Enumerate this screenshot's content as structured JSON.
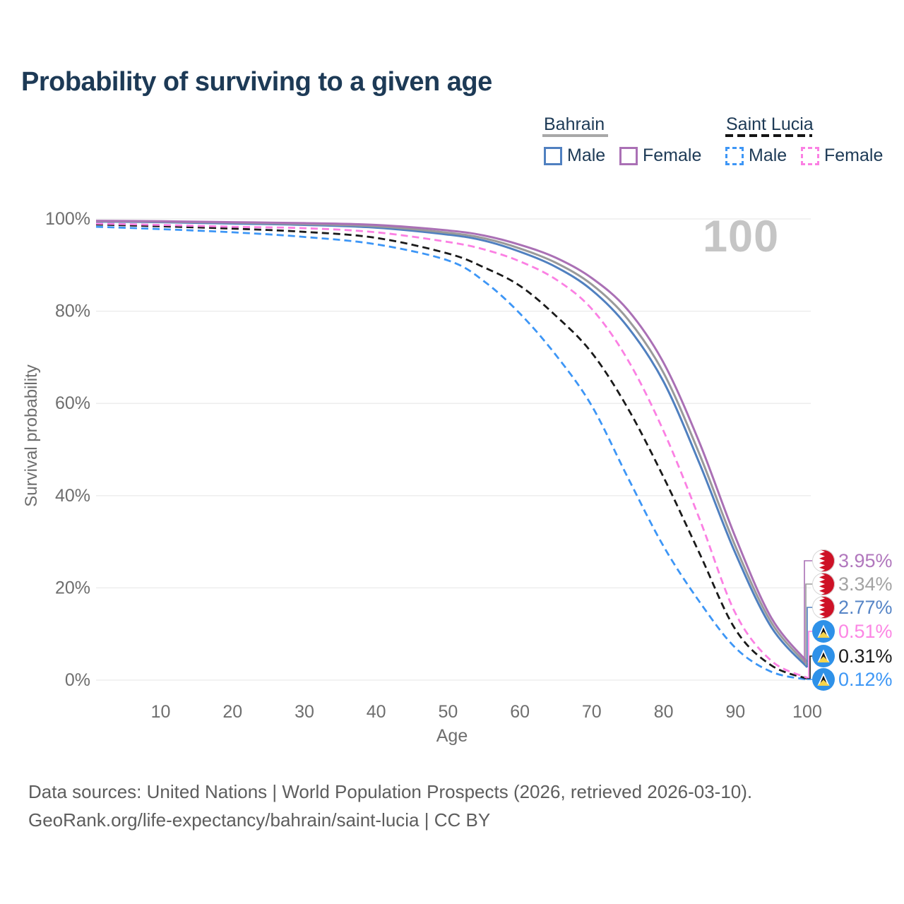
{
  "page": {
    "title": "Probability of surviving to a given age",
    "background_color": "#ffffff",
    "title_color": "#1d3a56"
  },
  "hover_age_watermark": "100",
  "legend": {
    "position": "top-right",
    "groups": [
      {
        "name": "Bahrain",
        "line_style": "solid",
        "underline_color": "#a8a8a8",
        "items": [
          {
            "label": "Male",
            "color": "#5080c0"
          },
          {
            "label": "Female",
            "color": "#aa70b5"
          }
        ]
      },
      {
        "name": "Saint Lucia",
        "line_style": "dashed",
        "underline_color": "#141414",
        "items": [
          {
            "label": "Male",
            "color": "#3d96f6"
          },
          {
            "label": "Female",
            "color": "#fb80e3"
          }
        ]
      }
    ]
  },
  "chart_data": {
    "type": "line",
    "title": "Probability of surviving to a given age",
    "xlabel": "Age",
    "ylabel": "Survival probability",
    "xlim": [
      1,
      100
    ],
    "ylim": [
      0,
      100
    ],
    "grid": "horizontal",
    "grid_color": "#ebebeb",
    "tick_color": "#6e6e6e",
    "x_tick_values": [
      10,
      20,
      30,
      40,
      50,
      60,
      70,
      80,
      90,
      100
    ],
    "x_tick_labels": [
      "10",
      "20",
      "30",
      "40",
      "50",
      "60",
      "70",
      "80",
      "90",
      "100"
    ],
    "y_tick_values": [
      0,
      20,
      40,
      60,
      80,
      100
    ],
    "y_tick_labels": [
      "0%",
      "20%",
      "40%",
      "60%",
      "80%",
      "100%"
    ],
    "ages": [
      1,
      10,
      20,
      30,
      40,
      50,
      55,
      60,
      65,
      70,
      75,
      80,
      85,
      90,
      95,
      100
    ],
    "series": [
      {
        "name": "Bahrain Female",
        "country": "Bahrain",
        "sex": "Female",
        "style": "solid",
        "color": "#aa70b5",
        "label_color": "#b177bd",
        "flag": "bahrain",
        "end_value_label": "3.95%",
        "values": [
          99.6,
          99.5,
          99.3,
          99.1,
          98.7,
          97.5,
          96.4,
          94.4,
          91.6,
          87.2,
          80.3,
          68.8,
          51.5,
          31.0,
          13.5,
          3.95
        ]
      },
      {
        "name": "Bahrain",
        "country": "Bahrain",
        "sex": "Both",
        "style": "solid",
        "color": "#9a9a9a",
        "label_color": "#a3a3a3",
        "flag": "bahrain",
        "end_value_label": "3.34%",
        "values": [
          99.5,
          99.4,
          99.2,
          98.9,
          98.4,
          97.0,
          95.8,
          93.6,
          90.5,
          85.8,
          78.3,
          66.6,
          49.0,
          29.0,
          12.5,
          3.34
        ]
      },
      {
        "name": "Bahrain Male",
        "country": "Bahrain",
        "sex": "Male",
        "style": "solid",
        "color": "#5080c0",
        "label_color": "#5584c6",
        "flag": "bahrain",
        "end_value_label": "2.77%",
        "values": [
          99.4,
          99.3,
          99.0,
          98.7,
          98.1,
          96.6,
          95.3,
          92.9,
          89.6,
          84.6,
          76.6,
          64.7,
          47.0,
          27.5,
          11.5,
          2.77
        ]
      },
      {
        "name": "Saint Lucia Female",
        "country": "Saint Lucia",
        "sex": "Female",
        "style": "dashed",
        "color": "#fb80e3",
        "label_color": "#fc86e4",
        "flag": "saint-lucia",
        "end_value_label": "0.51%",
        "values": [
          99.0,
          98.7,
          98.3,
          98.0,
          97.1,
          95.0,
          93.4,
          90.8,
          86.9,
          80.5,
          69.5,
          54.0,
          35.0,
          14.5,
          4.2,
          0.51
        ]
      },
      {
        "name": "Saint Lucia",
        "country": "Saint Lucia",
        "sex": "Both",
        "style": "dashed",
        "color": "#1a1a1a",
        "label_color": "#1c1c1c",
        "flag": "saint-lucia",
        "end_value_label": "0.31%",
        "values": [
          98.8,
          98.4,
          97.9,
          97.2,
          95.9,
          92.5,
          89.5,
          85.5,
          79.0,
          71.0,
          59.0,
          44.0,
          27.5,
          11.0,
          3.2,
          0.31
        ]
      },
      {
        "name": "Saint Lucia Male",
        "country": "Saint Lucia",
        "sex": "Male",
        "style": "dashed",
        "color": "#3d96f6",
        "label_color": "#3e97f5",
        "flag": "saint-lucia",
        "end_value_label": "0.12%",
        "values": [
          98.3,
          97.8,
          97.1,
          96.1,
          94.5,
          91.0,
          86.5,
          79.5,
          70.5,
          59.5,
          44.0,
          29.0,
          17.0,
          7.0,
          1.8,
          0.12
        ]
      }
    ],
    "flag_colors": {
      "bahrain_red": "#ce1126",
      "bahrain_white": "#ffffff",
      "saint_lucia_blue": "#2e91e8",
      "saint_lucia_yellow": "#f6d44a",
      "saint_lucia_black": "#141414",
      "saint_lucia_white": "#ffffff"
    }
  },
  "footer": {
    "line1": "Data sources: United Nations | World Population Prospects (2026, retrieved 2026-03-10).",
    "line2": "GeoRank.org/life-expectancy/bahrain/saint-lucia | CC BY"
  }
}
